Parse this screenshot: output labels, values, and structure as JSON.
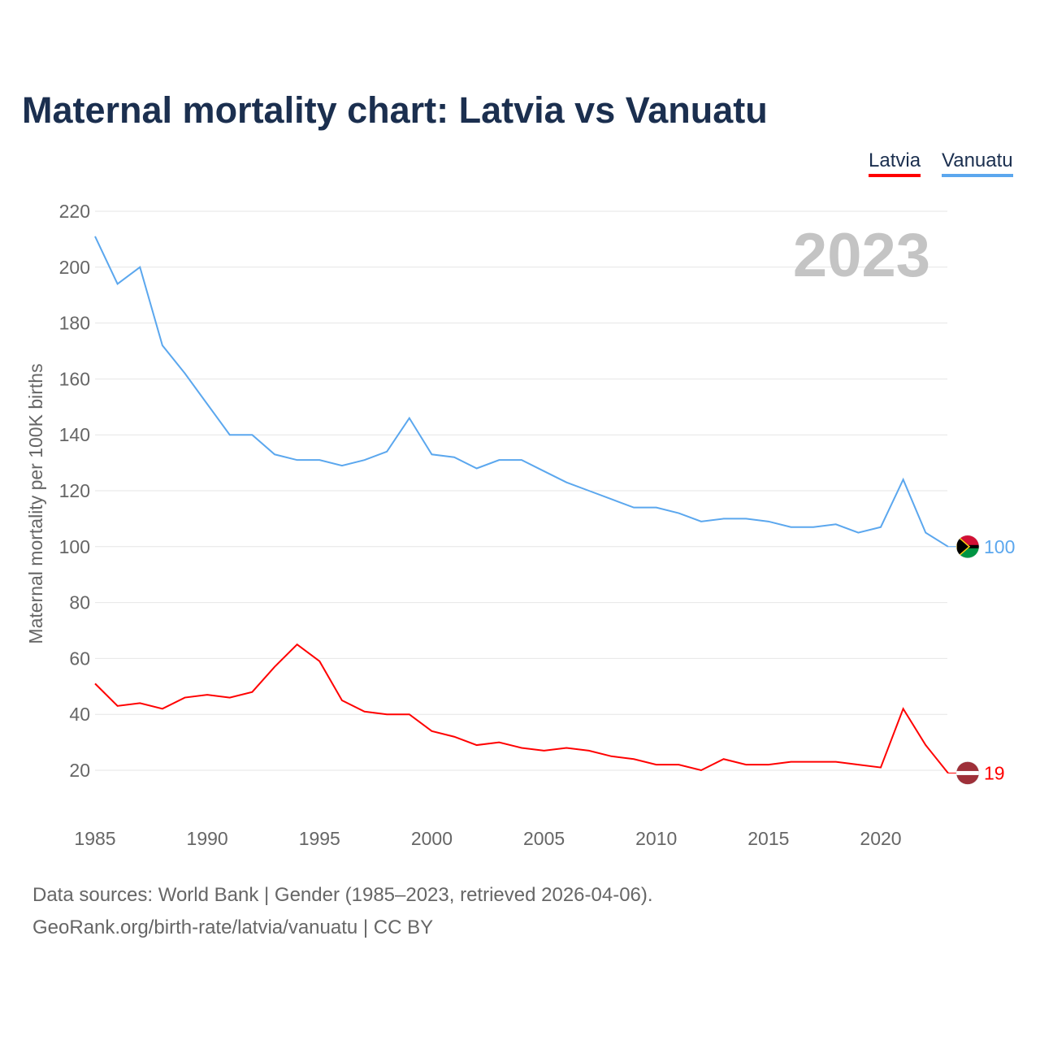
{
  "title": "Maternal mortality chart: Latvia vs Vanuatu",
  "footer": {
    "line1": "Data sources: World Bank | Gender (1985–2023, retrieved 2026-04-06).",
    "line2": "GeoRank.org/birth-rate/latvia/vanuatu | CC BY"
  },
  "chart_data": {
    "type": "line",
    "title": "Maternal mortality chart: Latvia vs Vanuatu",
    "ylabel": "Maternal mortality per 100K births",
    "xlabel": "",
    "year_watermark": "2023",
    "xlim": [
      1985,
      2023
    ],
    "ylim": [
      10,
      220
    ],
    "xticks": [
      1985,
      1990,
      1995,
      2000,
      2005,
      2010,
      2015,
      2020
    ],
    "yticks": [
      20,
      40,
      60,
      80,
      100,
      120,
      140,
      160,
      180,
      200,
      220
    ],
    "grid": true,
    "legend_position": "top-right",
    "x": [
      1985,
      1986,
      1987,
      1988,
      1989,
      1990,
      1991,
      1992,
      1993,
      1994,
      1995,
      1996,
      1997,
      1998,
      1999,
      2000,
      2001,
      2002,
      2003,
      2004,
      2005,
      2006,
      2007,
      2008,
      2009,
      2010,
      2011,
      2012,
      2013,
      2014,
      2015,
      2016,
      2017,
      2018,
      2019,
      2020,
      2021,
      2022,
      2023
    ],
    "series": [
      {
        "name": "Latvia",
        "color": "#ff0000",
        "end_label": "19",
        "values": [
          51,
          43,
          44,
          42,
          46,
          47,
          46,
          48,
          57,
          65,
          59,
          45,
          41,
          40,
          40,
          34,
          32,
          29,
          30,
          28,
          27,
          28,
          27,
          25,
          24,
          22,
          22,
          20,
          24,
          22,
          22,
          23,
          23,
          23,
          22,
          21,
          42,
          29,
          19
        ]
      },
      {
        "name": "Vanuatu",
        "color": "#5ba7ee",
        "end_label": "100",
        "values": [
          211,
          194,
          200,
          172,
          162,
          151,
          140,
          140,
          133,
          131,
          131,
          129,
          131,
          134,
          146,
          133,
          132,
          128,
          131,
          131,
          127,
          123,
          120,
          117,
          114,
          114,
          112,
          109,
          110,
          110,
          109,
          107,
          107,
          108,
          105,
          107,
          124,
          105,
          100
        ]
      }
    ]
  }
}
